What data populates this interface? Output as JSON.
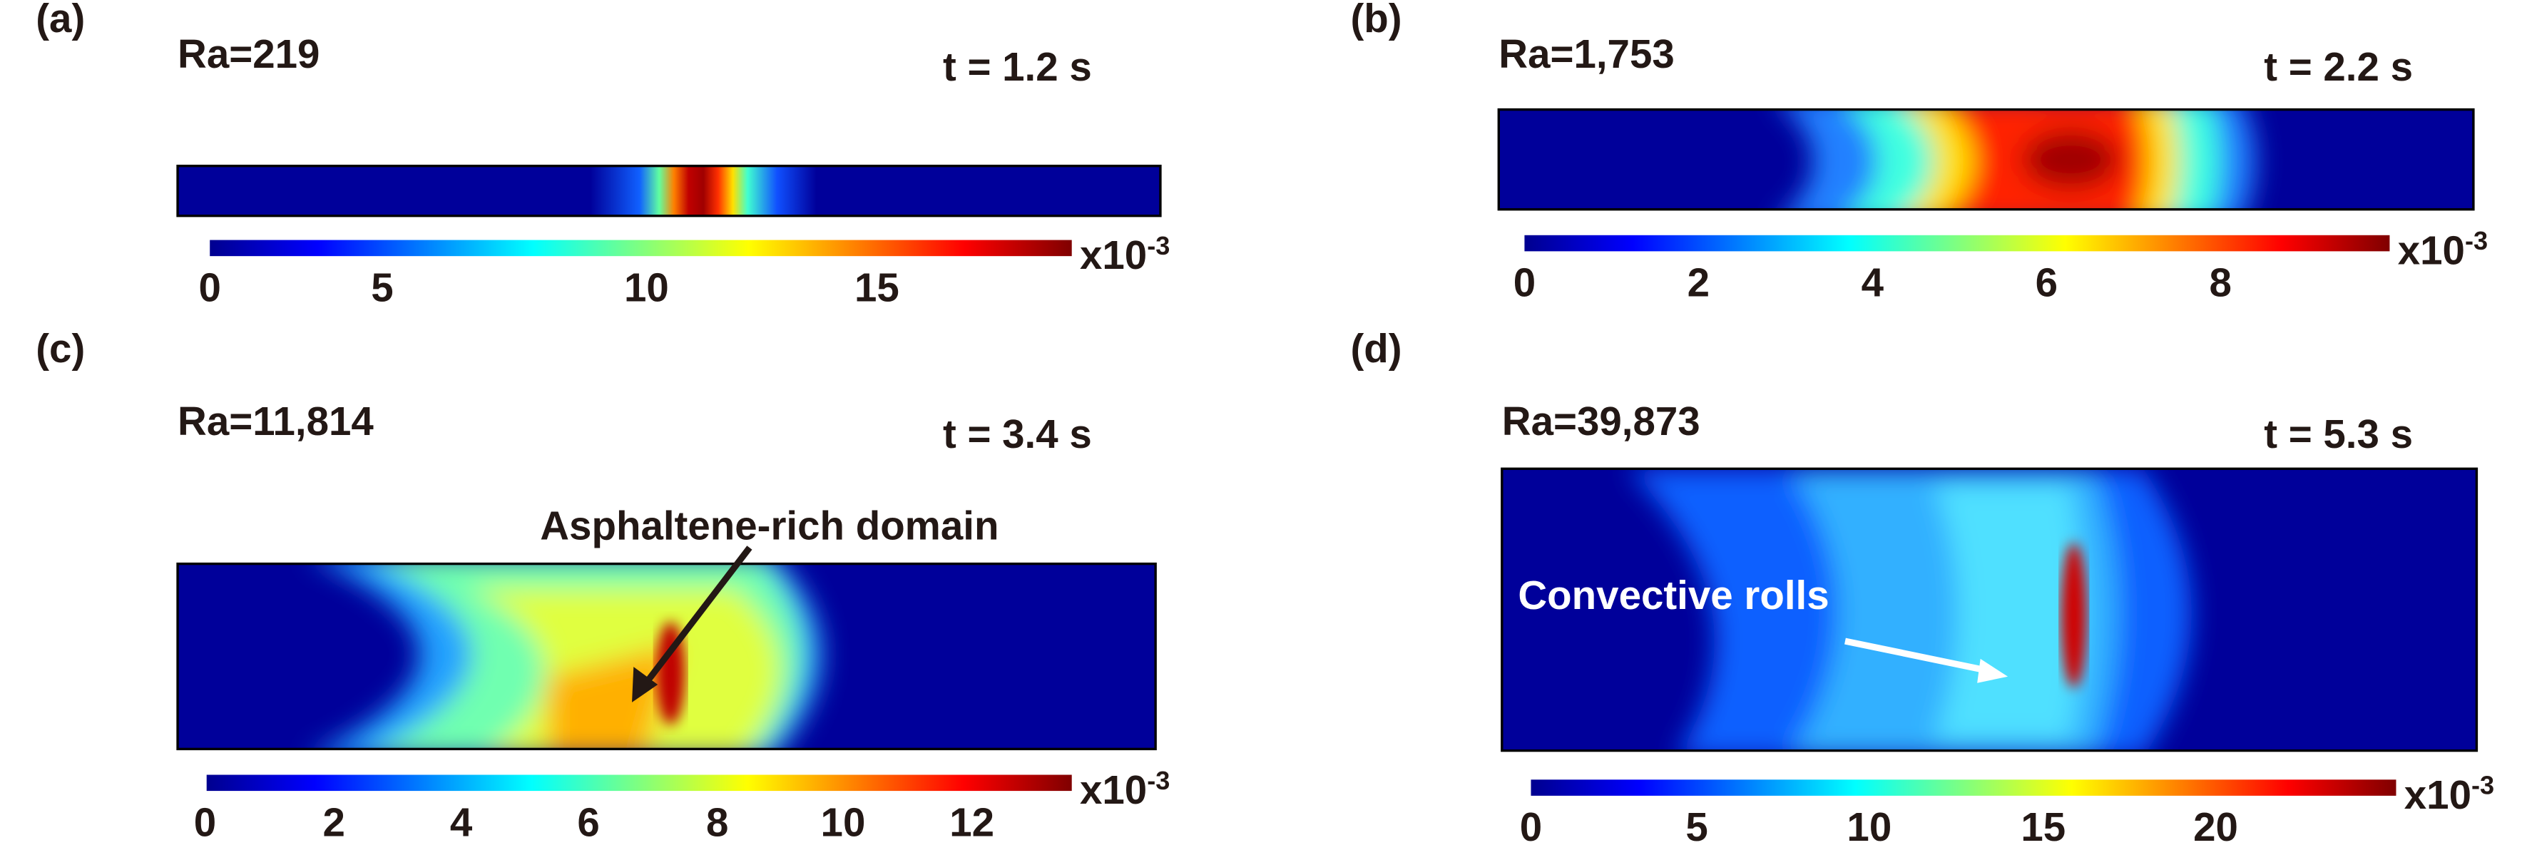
{
  "panels": [
    {
      "label": "(a)",
      "rayleigh": "Ra=219",
      "time": "t = 1.2 s",
      "colorbar": {
        "ticks": [
          "0",
          "5",
          "10",
          "15"
        ],
        "multiplier": "x10",
        "exponent": "-3"
      }
    },
    {
      "label": "(b)",
      "rayleigh": "Ra=1,753",
      "time": "t = 2.2 s",
      "colorbar": {
        "ticks": [
          "0",
          "2",
          "4",
          "6",
          "8"
        ],
        "multiplier": "x10",
        "exponent": "-3"
      }
    },
    {
      "label": "(c)",
      "rayleigh": "Ra=11,814",
      "time": "t = 3.4 s",
      "annotation": "Asphaltene-rich domain",
      "colorbar": {
        "ticks": [
          "0",
          "2",
          "4",
          "6",
          "8",
          "10",
          "12"
        ],
        "multiplier": "x10",
        "exponent": "-3"
      }
    },
    {
      "label": "(d)",
      "rayleigh": "Ra=39,873",
      "time": "t = 5.3 s",
      "annotation": "Convective rolls",
      "colorbar": {
        "ticks": [
          "0",
          "5",
          "10",
          "15",
          "20"
        ],
        "multiplier": "x10",
        "exponent": "-3"
      }
    }
  ]
}
